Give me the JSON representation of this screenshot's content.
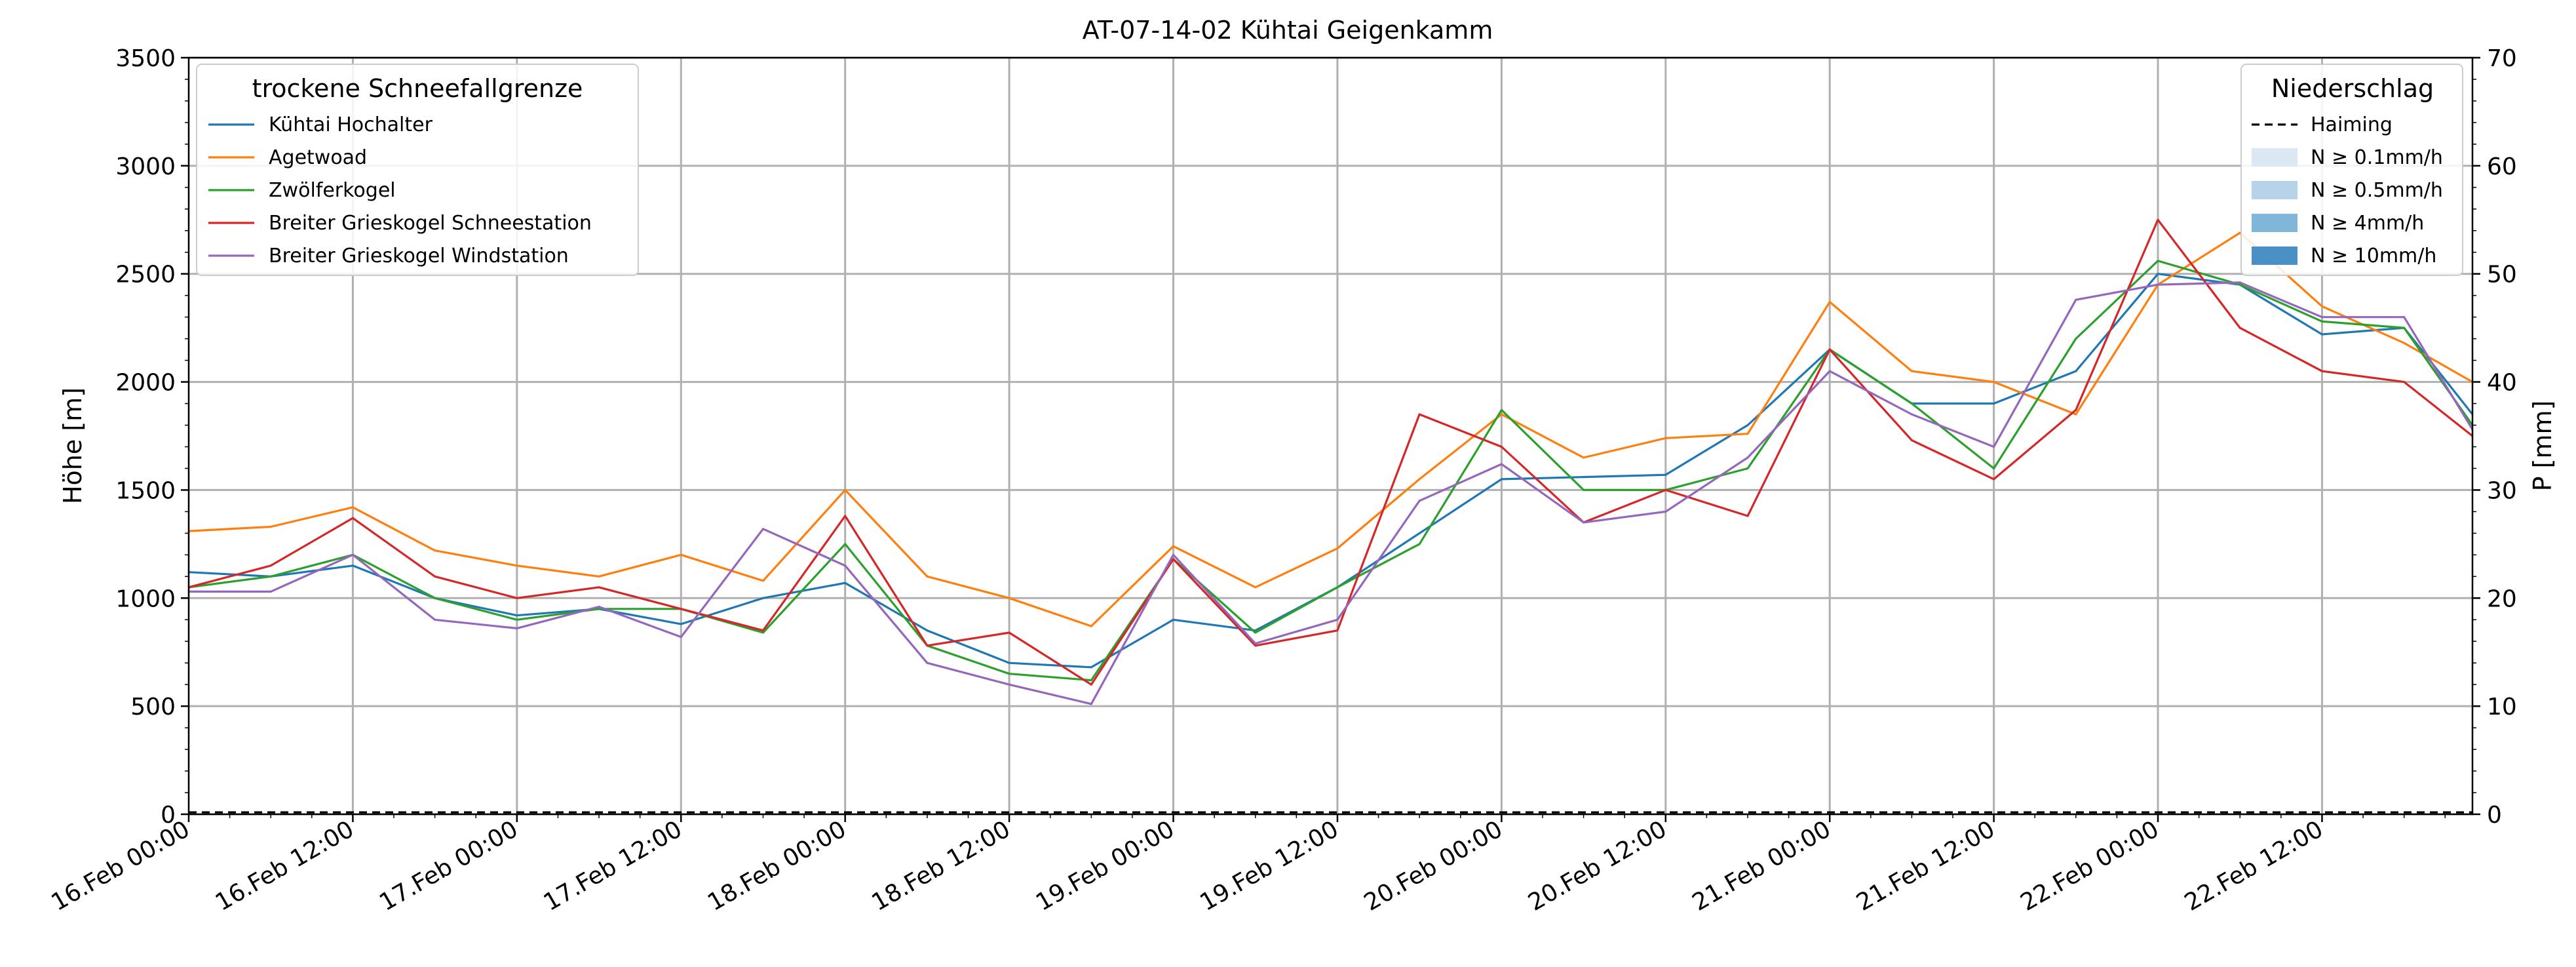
{
  "chart_data": {
    "type": "line",
    "title": "AT-07-14-02 Kühtai Geigenkamm",
    "ylabel": "Höhe [m]",
    "y2label": "P [mm]",
    "ylim": [
      0,
      3500
    ],
    "y2lim": [
      0,
      70
    ],
    "yticks": [
      "0",
      "500",
      "1000",
      "1500",
      "2000",
      "2500",
      "3000",
      "3500"
    ],
    "y2ticks": [
      "0",
      "10",
      "20",
      "30",
      "40",
      "50",
      "60",
      "70"
    ],
    "x_start_hours": 0,
    "x_end_hours": 167,
    "xticks": [
      "16.Feb 00:00",
      "16.Feb 12:00",
      "17.Feb 00:00",
      "17.Feb 12:00",
      "18.Feb 00:00",
      "18.Feb 12:00",
      "19.Feb 00:00",
      "19.Feb 12:00",
      "20.Feb 00:00",
      "20.Feb 12:00",
      "21.Feb 00:00",
      "21.Feb 12:00",
      "22.Feb 00:00",
      "22.Feb 12:00"
    ],
    "grid": true,
    "legend_left": {
      "title": "trockene Schneefallgrenze",
      "placement": "top-left"
    },
    "legend_right": {
      "title": "Niederschlag",
      "placement": "top-right",
      "items": [
        {
          "label": "Haiming",
          "style": "dashed-line",
          "color": "#000000"
        },
        {
          "label": "N ≥ 0.1mm/h",
          "style": "patch",
          "color": "#dbe8f4"
        },
        {
          "label": "N ≥ 0.5mm/h",
          "style": "patch",
          "color": "#b6d3ea"
        },
        {
          "label": "N ≥ 4mm/h",
          "style": "patch",
          "color": "#80b6d8"
        },
        {
          "label": "N ≥ 10mm/h",
          "style": "patch",
          "color": "#4a90c4"
        }
      ]
    },
    "precip_haiming_mm": 0,
    "series": [
      {
        "name": "Kühtai Hochalter",
        "color": "#1f77b4",
        "x_hours": [
          0,
          6,
          12,
          18,
          24,
          30,
          36,
          42,
          48,
          54,
          60,
          66,
          72,
          78,
          84,
          90,
          96,
          102,
          108,
          114,
          120,
          126,
          132,
          138,
          144,
          150,
          156,
          162,
          167
        ],
        "values": [
          1120,
          1100,
          1150,
          1000,
          920,
          950,
          880,
          1000,
          1070,
          850,
          700,
          680,
          900,
          850,
          1050,
          1300,
          1550,
          1560,
          1570,
          1800,
          2150,
          1900,
          1900,
          2050,
          2500,
          2450,
          2220,
          2250,
          1850
        ]
      },
      {
        "name": "Agetwoad",
        "color": "#ff7f0e",
        "x_hours": [
          0,
          6,
          12,
          18,
          24,
          30,
          36,
          42,
          48,
          54,
          60,
          66,
          72,
          78,
          84,
          90,
          96,
          102,
          108,
          114,
          120,
          126,
          132,
          138,
          144,
          150,
          156,
          162,
          167
        ],
        "values": [
          1310,
          1330,
          1420,
          1220,
          1150,
          1100,
          1200,
          1080,
          1500,
          1100,
          1000,
          870,
          1240,
          1050,
          1230,
          1550,
          1850,
          1650,
          1740,
          1760,
          2370,
          2050,
          2000,
          1850,
          2450,
          2690,
          2350,
          2180,
          2000
        ]
      },
      {
        "name": "Zwölferkogel",
        "color": "#2ca02c",
        "x_hours": [
          0,
          6,
          12,
          18,
          24,
          30,
          36,
          42,
          48,
          54,
          60,
          66,
          72,
          78,
          84,
          90,
          96,
          102,
          108,
          114,
          120,
          126,
          132,
          138,
          144,
          150,
          156,
          162,
          167
        ],
        "values": [
          1050,
          1100,
          1200,
          1000,
          900,
          950,
          950,
          840,
          1250,
          780,
          650,
          620,
          1180,
          840,
          1050,
          1250,
          1870,
          1500,
          1500,
          1600,
          2150,
          1900,
          1600,
          2200,
          2560,
          2450,
          2280,
          2250,
          1800
        ]
      },
      {
        "name": "Breiter Grieskogel Schneestation",
        "color": "#d62728",
        "x_hours": [
          0,
          6,
          12,
          18,
          24,
          30,
          36,
          42,
          48,
          54,
          60,
          66,
          72,
          78,
          84,
          90,
          96,
          102,
          108,
          114,
          120,
          126,
          132,
          138,
          144,
          150,
          156,
          162,
          167
        ],
        "values": [
          1050,
          1150,
          1370,
          1100,
          1000,
          1050,
          950,
          850,
          1380,
          780,
          840,
          600,
          1180,
          780,
          850,
          1850,
          1700,
          1350,
          1500,
          1380,
          2150,
          1730,
          1550,
          1870,
          2750,
          2250,
          2050,
          2000,
          1750
        ]
      },
      {
        "name": "Breiter Grieskogel Windstation",
        "color": "#9467bd",
        "x_hours": [
          0,
          6,
          12,
          18,
          24,
          30,
          36,
          42,
          48,
          54,
          60,
          66,
          72,
          78,
          84,
          90,
          96,
          102,
          108,
          114,
          120,
          126,
          132,
          138,
          144,
          150,
          156,
          162,
          167
        ],
        "values": [
          1030,
          1030,
          1200,
          900,
          860,
          960,
          820,
          1320,
          1150,
          700,
          600,
          510,
          1200,
          790,
          900,
          1450,
          1620,
          1350,
          1400,
          1650,
          2050,
          1850,
          1700,
          2380,
          2450,
          2460,
          2300,
          2300,
          1780
        ]
      }
    ]
  }
}
